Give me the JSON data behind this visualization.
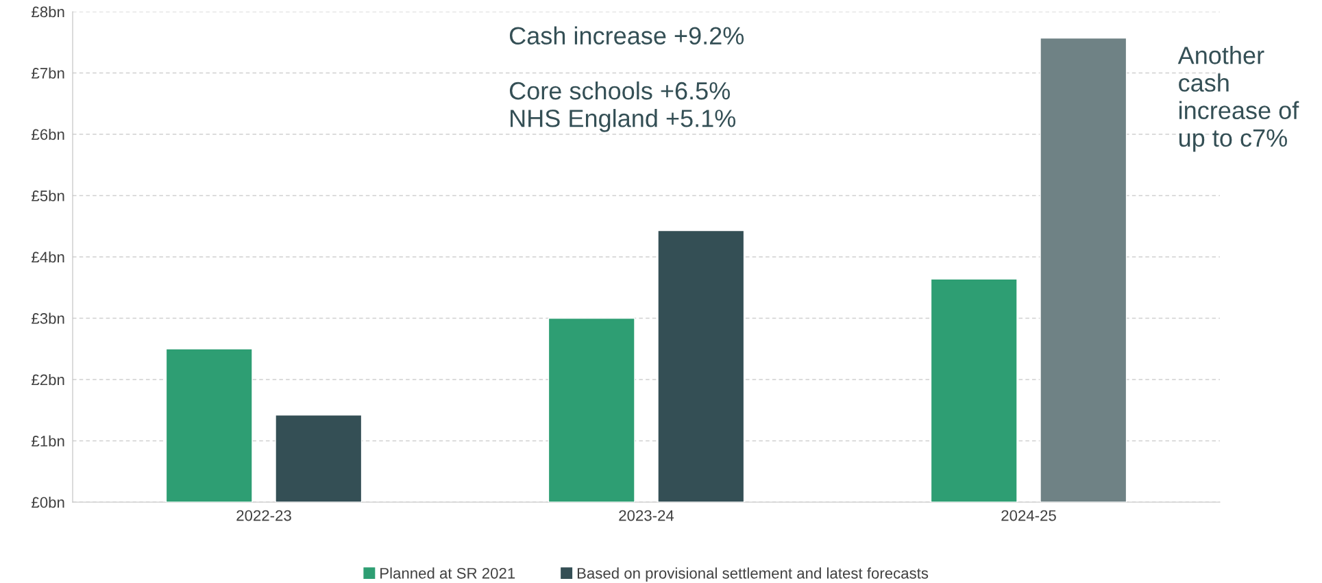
{
  "chart_data": {
    "type": "bar",
    "categories": [
      "2022-23",
      "2023-24",
      "2024-25"
    ],
    "series": [
      {
        "name": "Planned at SR 2021",
        "color": "#2e9e73",
        "values": [
          2.5,
          3.0,
          3.64
        ]
      },
      {
        "name": "Based on provisional settlement and latest forecasts",
        "color": "#344f55",
        "colors": [
          "#344f55",
          "#344f55",
          "#6f8285"
        ],
        "values": [
          1.42,
          4.43,
          7.57
        ]
      }
    ],
    "ylim": [
      0,
      8
    ],
    "yticks": [
      {
        "value": 0,
        "label": "£0bn"
      },
      {
        "value": 1,
        "label": "£1bn"
      },
      {
        "value": 2,
        "label": "£2bn"
      },
      {
        "value": 3,
        "label": "£3bn"
      },
      {
        "value": 4,
        "label": "£4bn"
      },
      {
        "value": 5,
        "label": "£5bn"
      },
      {
        "value": 6,
        "label": "£6bn"
      },
      {
        "value": 7,
        "label": "£7bn"
      },
      {
        "value": 8,
        "label": "£8bn"
      }
    ],
    "grid": "y",
    "legend": "bottom",
    "annotations": [
      "Cash increase +9.2%\n\nCore schools +6.5%\nNHS England +5.1%",
      "Another\ncash\nincrease of\nup to c7%"
    ]
  }
}
